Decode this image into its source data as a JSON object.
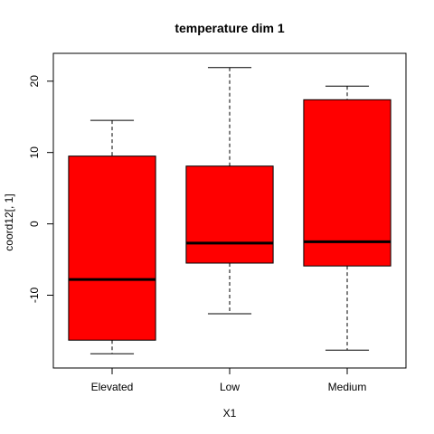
{
  "chart_data": {
    "type": "boxplot",
    "title": "temperature dim 1",
    "xlabel": "X1",
    "ylabel": "coord12[, 1]",
    "categories": [
      "Elevated",
      "Low",
      "Medium"
    ],
    "boxes": [
      {
        "category": "Elevated",
        "whisker_low": -18.2,
        "q1": -16.3,
        "median": -7.8,
        "q3": 9.5,
        "whisker_high": 14.5
      },
      {
        "category": "Low",
        "whisker_low": -12.6,
        "q1": -5.5,
        "median": -2.7,
        "q3": 8.1,
        "whisker_high": 21.9
      },
      {
        "category": "Medium",
        "whisker_low": -17.7,
        "q1": -5.9,
        "median": -2.5,
        "q3": 17.4,
        "whisker_high": 19.3
      }
    ],
    "yticks": [
      -10,
      0,
      10,
      20
    ],
    "ylim": [
      -20.2,
      23.9
    ],
    "box_color": "#ff0000",
    "grid": false,
    "legend": "none"
  }
}
